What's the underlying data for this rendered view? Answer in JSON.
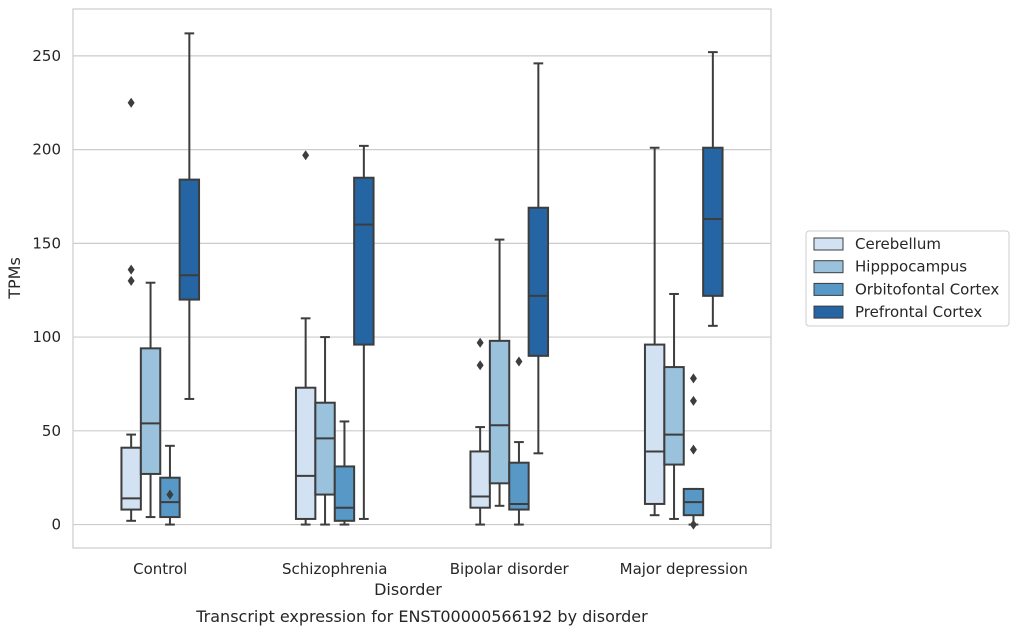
{
  "chart_data": {
    "type": "box",
    "title": "",
    "caption": "Transcript expression for ENST00000566192 by disorder",
    "xlabel": "Disorder",
    "ylabel": "TPMs",
    "ylim": [
      -12.5,
      275
    ],
    "yticks": [
      0,
      50,
      100,
      150,
      200,
      250
    ],
    "grid": "horizontal",
    "legend_position": "right",
    "categories": [
      "Control",
      "Schizophrenia",
      "Bipolar disorder",
      "Major depression"
    ],
    "series": [
      {
        "name": "Cerebellum",
        "color": "#d2e2f2",
        "boxes": [
          {
            "whisker_low": 2,
            "q1": 8,
            "median": 14,
            "q3": 41,
            "whisker_high": 48,
            "outliers": [
              130,
              136,
              225
            ]
          },
          {
            "whisker_low": 0,
            "q1": 3,
            "median": 26,
            "q3": 73,
            "whisker_high": 110,
            "outliers": [
              197
            ]
          },
          {
            "whisker_low": 0,
            "q1": 9,
            "median": 15,
            "q3": 39,
            "whisker_high": 52,
            "outliers": [
              85,
              97
            ]
          },
          {
            "whisker_low": 5,
            "q1": 11,
            "median": 39,
            "q3": 96,
            "whisker_high": 201,
            "outliers": []
          }
        ]
      },
      {
        "name": "Hipppocampus",
        "color": "#9ac2dc",
        "boxes": [
          {
            "whisker_low": 4,
            "q1": 27,
            "median": 54,
            "q3": 94,
            "whisker_high": 129,
            "outliers": []
          },
          {
            "whisker_low": 0,
            "q1": 16,
            "median": 46,
            "q3": 65,
            "whisker_high": 100,
            "outliers": []
          },
          {
            "whisker_low": 10,
            "q1": 22,
            "median": 53,
            "q3": 98,
            "whisker_high": 152,
            "outliers": []
          },
          {
            "whisker_low": 3,
            "q1": 32,
            "median": 48,
            "q3": 84,
            "whisker_high": 123,
            "outliers": []
          }
        ]
      },
      {
        "name": "Orbitofontal Cortex",
        "color": "#5798c6",
        "boxes": [
          {
            "whisker_low": 0,
            "q1": 4,
            "median": 12,
            "q3": 25,
            "whisker_high": 42,
            "outliers": [
              16
            ]
          },
          {
            "whisker_low": 0,
            "q1": 2,
            "median": 9,
            "q3": 31,
            "whisker_high": 55,
            "outliers": []
          },
          {
            "whisker_low": 0,
            "q1": 8,
            "median": 11,
            "q3": 33,
            "whisker_high": 44,
            "outliers": [
              87
            ]
          },
          {
            "whisker_low": 0,
            "q1": 5,
            "median": 12,
            "q3": 19,
            "whisker_high": 19,
            "outliers": [
              0,
              40,
              66,
              78
            ]
          }
        ]
      },
      {
        "name": "Prefrontal Cortex",
        "color": "#2565a3",
        "boxes": [
          {
            "whisker_low": 67,
            "q1": 120,
            "median": 133,
            "q3": 184,
            "whisker_high": 262,
            "outliers": []
          },
          {
            "whisker_low": 3,
            "q1": 96,
            "median": 160,
            "q3": 185,
            "whisker_high": 202,
            "outliers": []
          },
          {
            "whisker_low": 38,
            "q1": 90,
            "median": 122,
            "q3": 169,
            "whisker_high": 246,
            "outliers": []
          },
          {
            "whisker_low": 106,
            "q1": 122,
            "median": 163,
            "q3": 201,
            "whisker_high": 252,
            "outliers": []
          }
        ]
      }
    ]
  }
}
